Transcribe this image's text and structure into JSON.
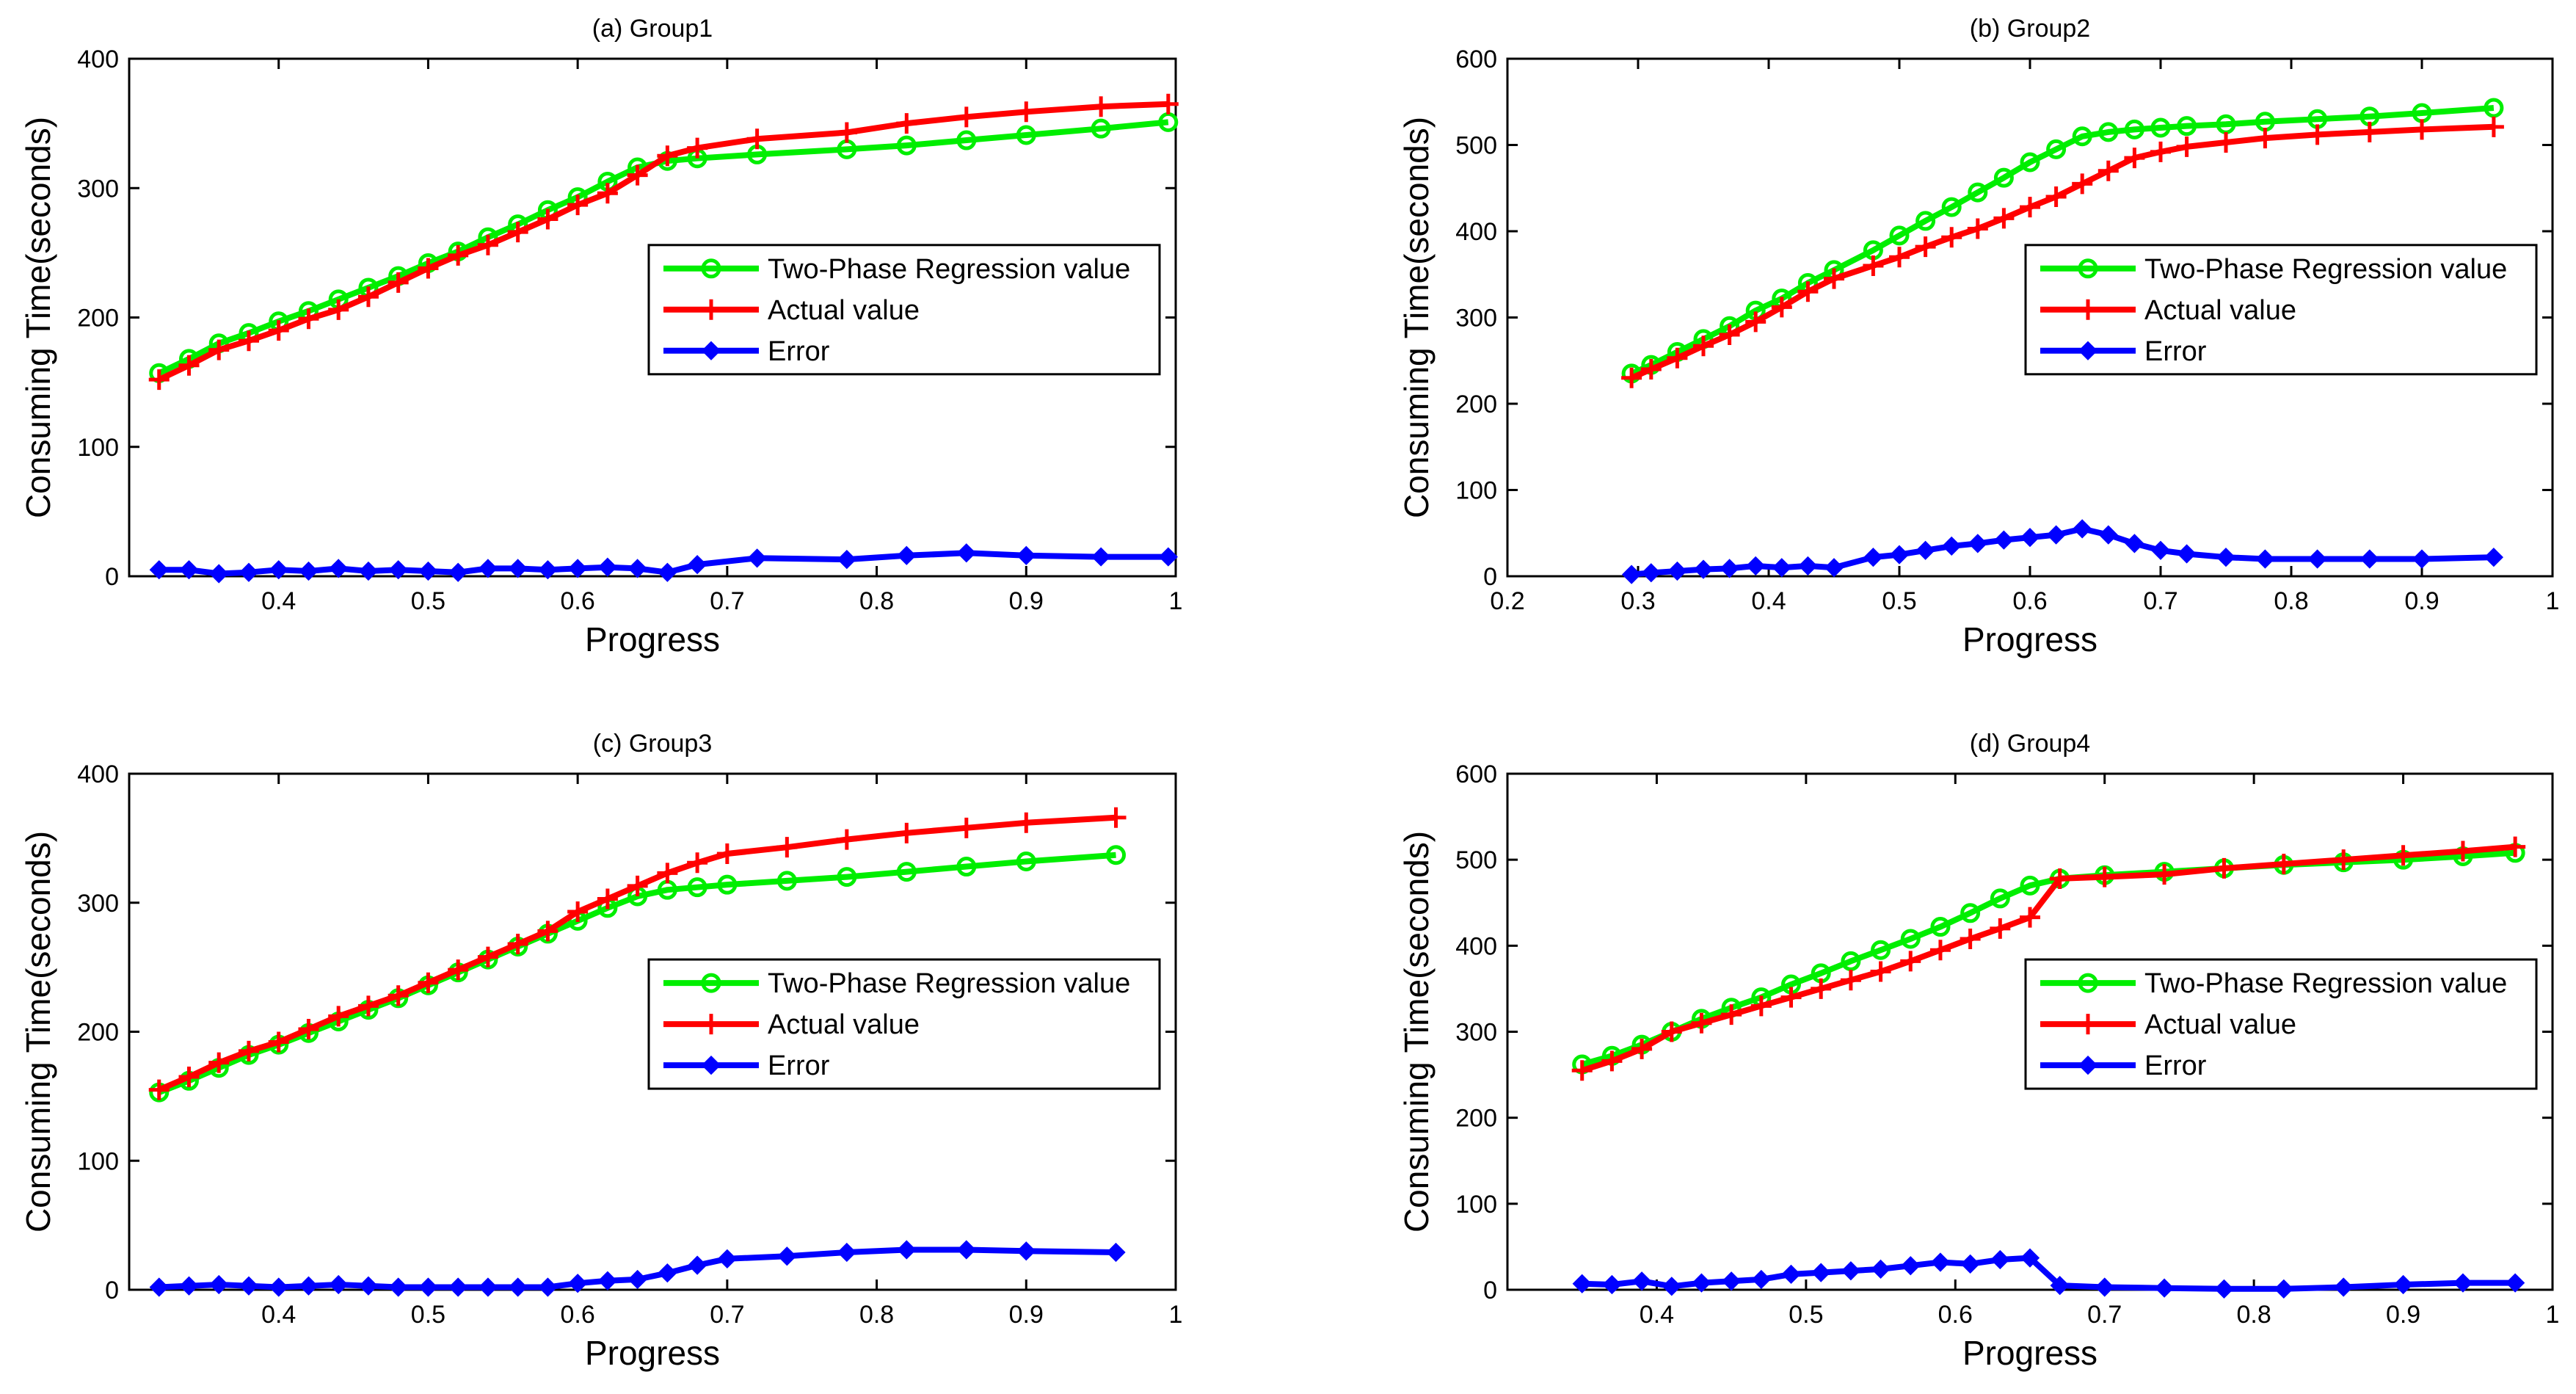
{
  "colors": {
    "model": "#00ee00",
    "actual": "#ff0000",
    "error": "#0000ff",
    "axis": "#000000",
    "background": "#ffffff"
  },
  "chart_data": [
    {
      "type": "line",
      "title": "(a) Group1",
      "xlabel": "Progress",
      "ylabel": "Consuming Time(seconds)",
      "xlim": [
        0.3,
        1.0
      ],
      "ylim": [
        0,
        400
      ],
      "xticks": [
        "0.4",
        "0.5",
        "0.6",
        "0.7",
        "0.8",
        "0.9",
        "1"
      ],
      "yticks": [
        "0",
        "100",
        "200",
        "300",
        "400"
      ],
      "legend_position": "center-right",
      "series": [
        {
          "name": "Two-Phase Regression value",
          "marker": "circle",
          "color": "#00ee00",
          "x": [
            0.32,
            0.34,
            0.36,
            0.38,
            0.4,
            0.42,
            0.44,
            0.46,
            0.48,
            0.5,
            0.52,
            0.54,
            0.56,
            0.58,
            0.6,
            0.62,
            0.64,
            0.66,
            0.68,
            0.72,
            0.78,
            0.82,
            0.86,
            0.9,
            0.95,
            0.995
          ],
          "y": [
            157,
            168,
            180,
            188,
            197,
            205,
            214,
            223,
            232,
            242,
            251,
            262,
            272,
            283,
            293,
            305,
            316,
            321,
            323,
            326,
            330,
            333,
            337,
            341,
            346,
            351
          ]
        },
        {
          "name": "Actual value",
          "marker": "plus",
          "color": "#ff0000",
          "x": [
            0.32,
            0.34,
            0.36,
            0.38,
            0.4,
            0.42,
            0.44,
            0.46,
            0.48,
            0.5,
            0.52,
            0.54,
            0.56,
            0.58,
            0.6,
            0.62,
            0.64,
            0.66,
            0.68,
            0.72,
            0.78,
            0.82,
            0.86,
            0.9,
            0.95,
            0.995
          ],
          "y": [
            152,
            163,
            175,
            182,
            190,
            199,
            206,
            216,
            227,
            238,
            248,
            256,
            266,
            276,
            287,
            296,
            310,
            325,
            331,
            338,
            343,
            350,
            355,
            359,
            363,
            365
          ]
        },
        {
          "name": "Error",
          "marker": "diamond",
          "color": "#0000ff",
          "x": [
            0.32,
            0.34,
            0.36,
            0.38,
            0.4,
            0.42,
            0.44,
            0.46,
            0.48,
            0.5,
            0.52,
            0.54,
            0.56,
            0.58,
            0.6,
            0.62,
            0.64,
            0.66,
            0.68,
            0.72,
            0.78,
            0.82,
            0.86,
            0.9,
            0.95,
            0.995
          ],
          "y": [
            5,
            5,
            2,
            3,
            5,
            4,
            6,
            4,
            5,
            4,
            3,
            6,
            6,
            5,
            6,
            7,
            6,
            3,
            9,
            14,
            13,
            16,
            18,
            16,
            15,
            15
          ]
        }
      ]
    },
    {
      "type": "line",
      "title": "(b) Group2",
      "xlabel": "Progress",
      "ylabel": "Consuming Time(seconds)",
      "xlim": [
        0.2,
        1.0
      ],
      "ylim": [
        0,
        600
      ],
      "xticks": [
        "0.2",
        "0.3",
        "0.4",
        "0.5",
        "0.6",
        "0.7",
        "0.8",
        "0.9",
        "1"
      ],
      "yticks": [
        "0",
        "100",
        "200",
        "300",
        "400",
        "500",
        "600"
      ],
      "legend_position": "center-right",
      "series": [
        {
          "name": "Two-Phase Regression value",
          "marker": "circle",
          "color": "#00ee00",
          "x": [
            0.295,
            0.31,
            0.33,
            0.35,
            0.37,
            0.39,
            0.41,
            0.43,
            0.45,
            0.48,
            0.5,
            0.52,
            0.54,
            0.56,
            0.58,
            0.6,
            0.62,
            0.64,
            0.66,
            0.68,
            0.7,
            0.72,
            0.75,
            0.78,
            0.82,
            0.86,
            0.9,
            0.955
          ],
          "y": [
            235,
            245,
            260,
            275,
            290,
            308,
            322,
            340,
            355,
            378,
            395,
            412,
            428,
            445,
            462,
            480,
            495,
            510,
            515,
            518,
            520,
            522,
            524,
            527,
            530,
            533,
            537,
            543
          ]
        },
        {
          "name": "Actual value",
          "marker": "plus",
          "color": "#ff0000",
          "x": [
            0.295,
            0.31,
            0.33,
            0.35,
            0.37,
            0.39,
            0.41,
            0.43,
            0.45,
            0.48,
            0.5,
            0.52,
            0.54,
            0.56,
            0.58,
            0.6,
            0.62,
            0.64,
            0.66,
            0.68,
            0.7,
            0.72,
            0.75,
            0.78,
            0.82,
            0.86,
            0.9,
            0.955
          ],
          "y": [
            230,
            240,
            253,
            267,
            280,
            295,
            312,
            330,
            345,
            360,
            370,
            382,
            393,
            403,
            415,
            428,
            440,
            455,
            470,
            485,
            492,
            498,
            503,
            508,
            512,
            515,
            518,
            521
          ]
        },
        {
          "name": "Error",
          "marker": "diamond",
          "color": "#0000ff",
          "x": [
            0.295,
            0.31,
            0.33,
            0.35,
            0.37,
            0.39,
            0.41,
            0.43,
            0.45,
            0.48,
            0.5,
            0.52,
            0.54,
            0.56,
            0.58,
            0.6,
            0.62,
            0.64,
            0.66,
            0.68,
            0.7,
            0.72,
            0.75,
            0.78,
            0.82,
            0.86,
            0.9,
            0.955
          ],
          "y": [
            2,
            4,
            6,
            8,
            9,
            12,
            10,
            12,
            10,
            22,
            25,
            30,
            35,
            38,
            42,
            45,
            48,
            55,
            48,
            38,
            30,
            26,
            22,
            20,
            20,
            20,
            20,
            22
          ]
        }
      ]
    },
    {
      "type": "line",
      "title": "(c) Group3",
      "xlabel": "Progress",
      "ylabel": "Consuming Time(seconds)",
      "xlim": [
        0.3,
        1.0
      ],
      "ylim": [
        0,
        400
      ],
      "xticks": [
        "0.4",
        "0.5",
        "0.6",
        "0.7",
        "0.8",
        "0.9",
        "1"
      ],
      "yticks": [
        "0",
        "100",
        "200",
        "300",
        "400"
      ],
      "legend_position": "center-right",
      "series": [
        {
          "name": "Two-Phase Regression value",
          "marker": "circle",
          "color": "#00ee00",
          "x": [
            0.32,
            0.34,
            0.36,
            0.38,
            0.4,
            0.42,
            0.44,
            0.46,
            0.48,
            0.5,
            0.52,
            0.54,
            0.56,
            0.58,
            0.6,
            0.62,
            0.64,
            0.66,
            0.68,
            0.7,
            0.74,
            0.78,
            0.82,
            0.86,
            0.9,
            0.96
          ],
          "y": [
            153,
            162,
            172,
            182,
            190,
            199,
            208,
            217,
            226,
            236,
            246,
            256,
            266,
            276,
            286,
            296,
            305,
            310,
            312,
            314,
            317,
            320,
            324,
            328,
            332,
            337
          ]
        },
        {
          "name": "Actual value",
          "marker": "plus",
          "color": "#ff0000",
          "x": [
            0.32,
            0.34,
            0.36,
            0.38,
            0.4,
            0.42,
            0.44,
            0.46,
            0.48,
            0.5,
            0.52,
            0.54,
            0.56,
            0.58,
            0.6,
            0.62,
            0.64,
            0.66,
            0.68,
            0.7,
            0.74,
            0.78,
            0.82,
            0.86,
            0.9,
            0.96
          ],
          "y": [
            155,
            165,
            176,
            185,
            192,
            202,
            212,
            220,
            228,
            238,
            248,
            258,
            268,
            278,
            293,
            303,
            313,
            323,
            331,
            338,
            343,
            349,
            354,
            358,
            362,
            366
          ]
        },
        {
          "name": "Error",
          "marker": "diamond",
          "color": "#0000ff",
          "x": [
            0.32,
            0.34,
            0.36,
            0.38,
            0.4,
            0.42,
            0.44,
            0.46,
            0.48,
            0.5,
            0.52,
            0.54,
            0.56,
            0.58,
            0.6,
            0.62,
            0.64,
            0.66,
            0.68,
            0.7,
            0.74,
            0.78,
            0.82,
            0.86,
            0.9,
            0.96
          ],
          "y": [
            2,
            3,
            4,
            3,
            2,
            3,
            4,
            3,
            2,
            2,
            2,
            2,
            2,
            2,
            5,
            7,
            8,
            13,
            19,
            24,
            26,
            29,
            31,
            31,
            30,
            29
          ]
        }
      ]
    },
    {
      "type": "line",
      "title": "(d) Group4",
      "xlabel": "Progress",
      "ylabel": "Consuming Time(seconds)",
      "xlim": [
        0.3,
        1.0
      ],
      "ylim": [
        0,
        600
      ],
      "xticks": [
        "0.4",
        "0.5",
        "0.6",
        "0.7",
        "0.8",
        "0.9",
        "1"
      ],
      "yticks": [
        "0",
        "100",
        "200",
        "300",
        "400",
        "500",
        "600"
      ],
      "legend_position": "center-right",
      "series": [
        {
          "name": "Two-Phase Regression value",
          "marker": "circle",
          "color": "#00ee00",
          "x": [
            0.35,
            0.37,
            0.39,
            0.41,
            0.43,
            0.45,
            0.47,
            0.49,
            0.51,
            0.53,
            0.55,
            0.57,
            0.59,
            0.61,
            0.63,
            0.65,
            0.67,
            0.7,
            0.74,
            0.78,
            0.82,
            0.86,
            0.9,
            0.94,
            0.975
          ],
          "y": [
            262,
            272,
            285,
            300,
            315,
            328,
            340,
            355,
            368,
            382,
            395,
            408,
            422,
            438,
            455,
            470,
            478,
            482,
            486,
            490,
            494,
            497,
            500,
            504,
            508
          ]
        },
        {
          "name": "Actual value",
          "marker": "plus",
          "color": "#ff0000",
          "x": [
            0.35,
            0.37,
            0.39,
            0.41,
            0.43,
            0.45,
            0.47,
            0.49,
            0.51,
            0.53,
            0.55,
            0.57,
            0.59,
            0.61,
            0.63,
            0.65,
            0.67,
            0.7,
            0.74,
            0.78,
            0.82,
            0.86,
            0.9,
            0.94,
            0.975
          ],
          "y": [
            255,
            266,
            280,
            300,
            310,
            320,
            330,
            340,
            350,
            360,
            370,
            382,
            395,
            408,
            420,
            433,
            478,
            480,
            483,
            490,
            495,
            500,
            505,
            510,
            515
          ]
        },
        {
          "name": "Error",
          "marker": "diamond",
          "color": "#0000ff",
          "x": [
            0.35,
            0.37,
            0.39,
            0.41,
            0.43,
            0.45,
            0.47,
            0.49,
            0.51,
            0.53,
            0.55,
            0.57,
            0.59,
            0.61,
            0.63,
            0.65,
            0.67,
            0.7,
            0.74,
            0.78,
            0.82,
            0.86,
            0.9,
            0.94,
            0.975
          ],
          "y": [
            7,
            6,
            10,
            4,
            8,
            10,
            12,
            18,
            20,
            22,
            24,
            28,
            32,
            30,
            35,
            37,
            5,
            3,
            2,
            1,
            1,
            3,
            6,
            8,
            8
          ]
        }
      ]
    }
  ]
}
